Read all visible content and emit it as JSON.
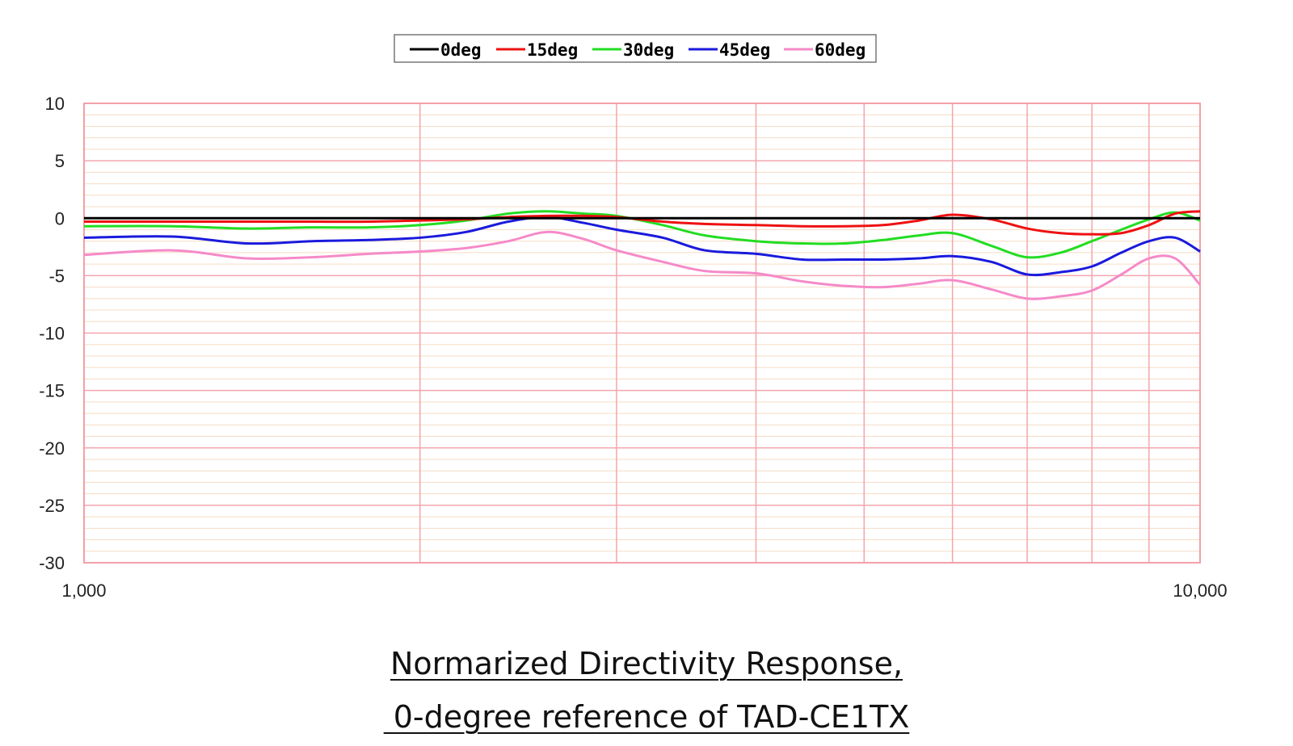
{
  "chart_data": {
    "type": "line",
    "title": "",
    "xlabel": "",
    "ylabel": "",
    "x_scale": "log",
    "xlim": [
      1000,
      10000
    ],
    "ylim": [
      -30,
      10
    ],
    "y_ticks": [
      10,
      5,
      0,
      -5,
      -10,
      -15,
      -20,
      -25,
      -30
    ],
    "x_tick_labels": [
      "1,000",
      "10,000"
    ],
    "grid": true,
    "legend": {
      "placement": "top-center"
    },
    "series": [
      {
        "name": "0deg",
        "color": "#000000",
        "x": [
          1000,
          10000
        ],
        "y": [
          0,
          0
        ]
      },
      {
        "name": "15deg",
        "color": "#ee1111",
        "x": [
          1000,
          1200,
          1400,
          1600,
          1800,
          2000,
          2200,
          2400,
          2600,
          2800,
          3000,
          3300,
          3600,
          4000,
          4400,
          4800,
          5200,
          5600,
          6000,
          6500,
          7000,
          7500,
          8000,
          8500,
          9000,
          9500,
          10000
        ],
        "y": [
          -0.3,
          -0.3,
          -0.3,
          -0.3,
          -0.3,
          -0.2,
          -0.1,
          0.1,
          0.2,
          0.2,
          0.1,
          -0.3,
          -0.5,
          -0.6,
          -0.7,
          -0.7,
          -0.6,
          -0.2,
          0.3,
          -0.1,
          -0.9,
          -1.3,
          -1.4,
          -1.3,
          -0.6,
          0.4,
          0.6
        ]
      },
      {
        "name": "30deg",
        "color": "#22dd22",
        "x": [
          1000,
          1200,
          1400,
          1600,
          1800,
          2000,
          2200,
          2400,
          2600,
          2800,
          3000,
          3300,
          3600,
          4000,
          4400,
          4800,
          5200,
          5600,
          6000,
          6500,
          7000,
          7500,
          8000,
          8500,
          9000,
          9500,
          10000
        ],
        "y": [
          -0.7,
          -0.7,
          -0.9,
          -0.8,
          -0.8,
          -0.6,
          -0.2,
          0.4,
          0.6,
          0.4,
          0.2,
          -0.6,
          -1.5,
          -2.0,
          -2.2,
          -2.2,
          -1.9,
          -1.5,
          -1.3,
          -2.4,
          -3.4,
          -3.0,
          -2.0,
          -1.0,
          -0.1,
          0.5,
          -0.2
        ]
      },
      {
        "name": "45deg",
        "color": "#1a1add",
        "x": [
          1000,
          1200,
          1400,
          1600,
          1800,
          2000,
          2200,
          2400,
          2600,
          2800,
          3000,
          3300,
          3600,
          4000,
          4400,
          4800,
          5200,
          5600,
          6000,
          6500,
          7000,
          7500,
          8000,
          8500,
          9000,
          9500,
          10000
        ],
        "y": [
          -1.7,
          -1.6,
          -2.2,
          -2.0,
          -1.9,
          -1.7,
          -1.2,
          -0.3,
          0.1,
          -0.4,
          -1.0,
          -1.7,
          -2.8,
          -3.1,
          -3.6,
          -3.6,
          -3.6,
          -3.5,
          -3.3,
          -3.8,
          -4.9,
          -4.7,
          -4.2,
          -3.0,
          -2.0,
          -1.7,
          -2.9
        ]
      },
      {
        "name": "60deg",
        "color": "#f58ac8",
        "x": [
          1000,
          1200,
          1400,
          1600,
          1800,
          2000,
          2200,
          2400,
          2600,
          2800,
          3000,
          3300,
          3600,
          4000,
          4400,
          4800,
          5200,
          5600,
          6000,
          6500,
          7000,
          7500,
          8000,
          8500,
          9000,
          9500,
          10000
        ],
        "y": [
          -3.2,
          -2.8,
          -3.5,
          -3.4,
          -3.1,
          -2.9,
          -2.6,
          -2.0,
          -1.2,
          -1.8,
          -2.8,
          -3.8,
          -4.6,
          -4.8,
          -5.5,
          -5.9,
          -6.0,
          -5.7,
          -5.4,
          -6.2,
          -7.0,
          -6.8,
          -6.3,
          -4.9,
          -3.5,
          -3.5,
          -5.8
        ]
      }
    ]
  },
  "caption": {
    "line1": "Normarized Directivity Response,",
    "line2": " 0-degree reference of TAD-CE1TX"
  }
}
